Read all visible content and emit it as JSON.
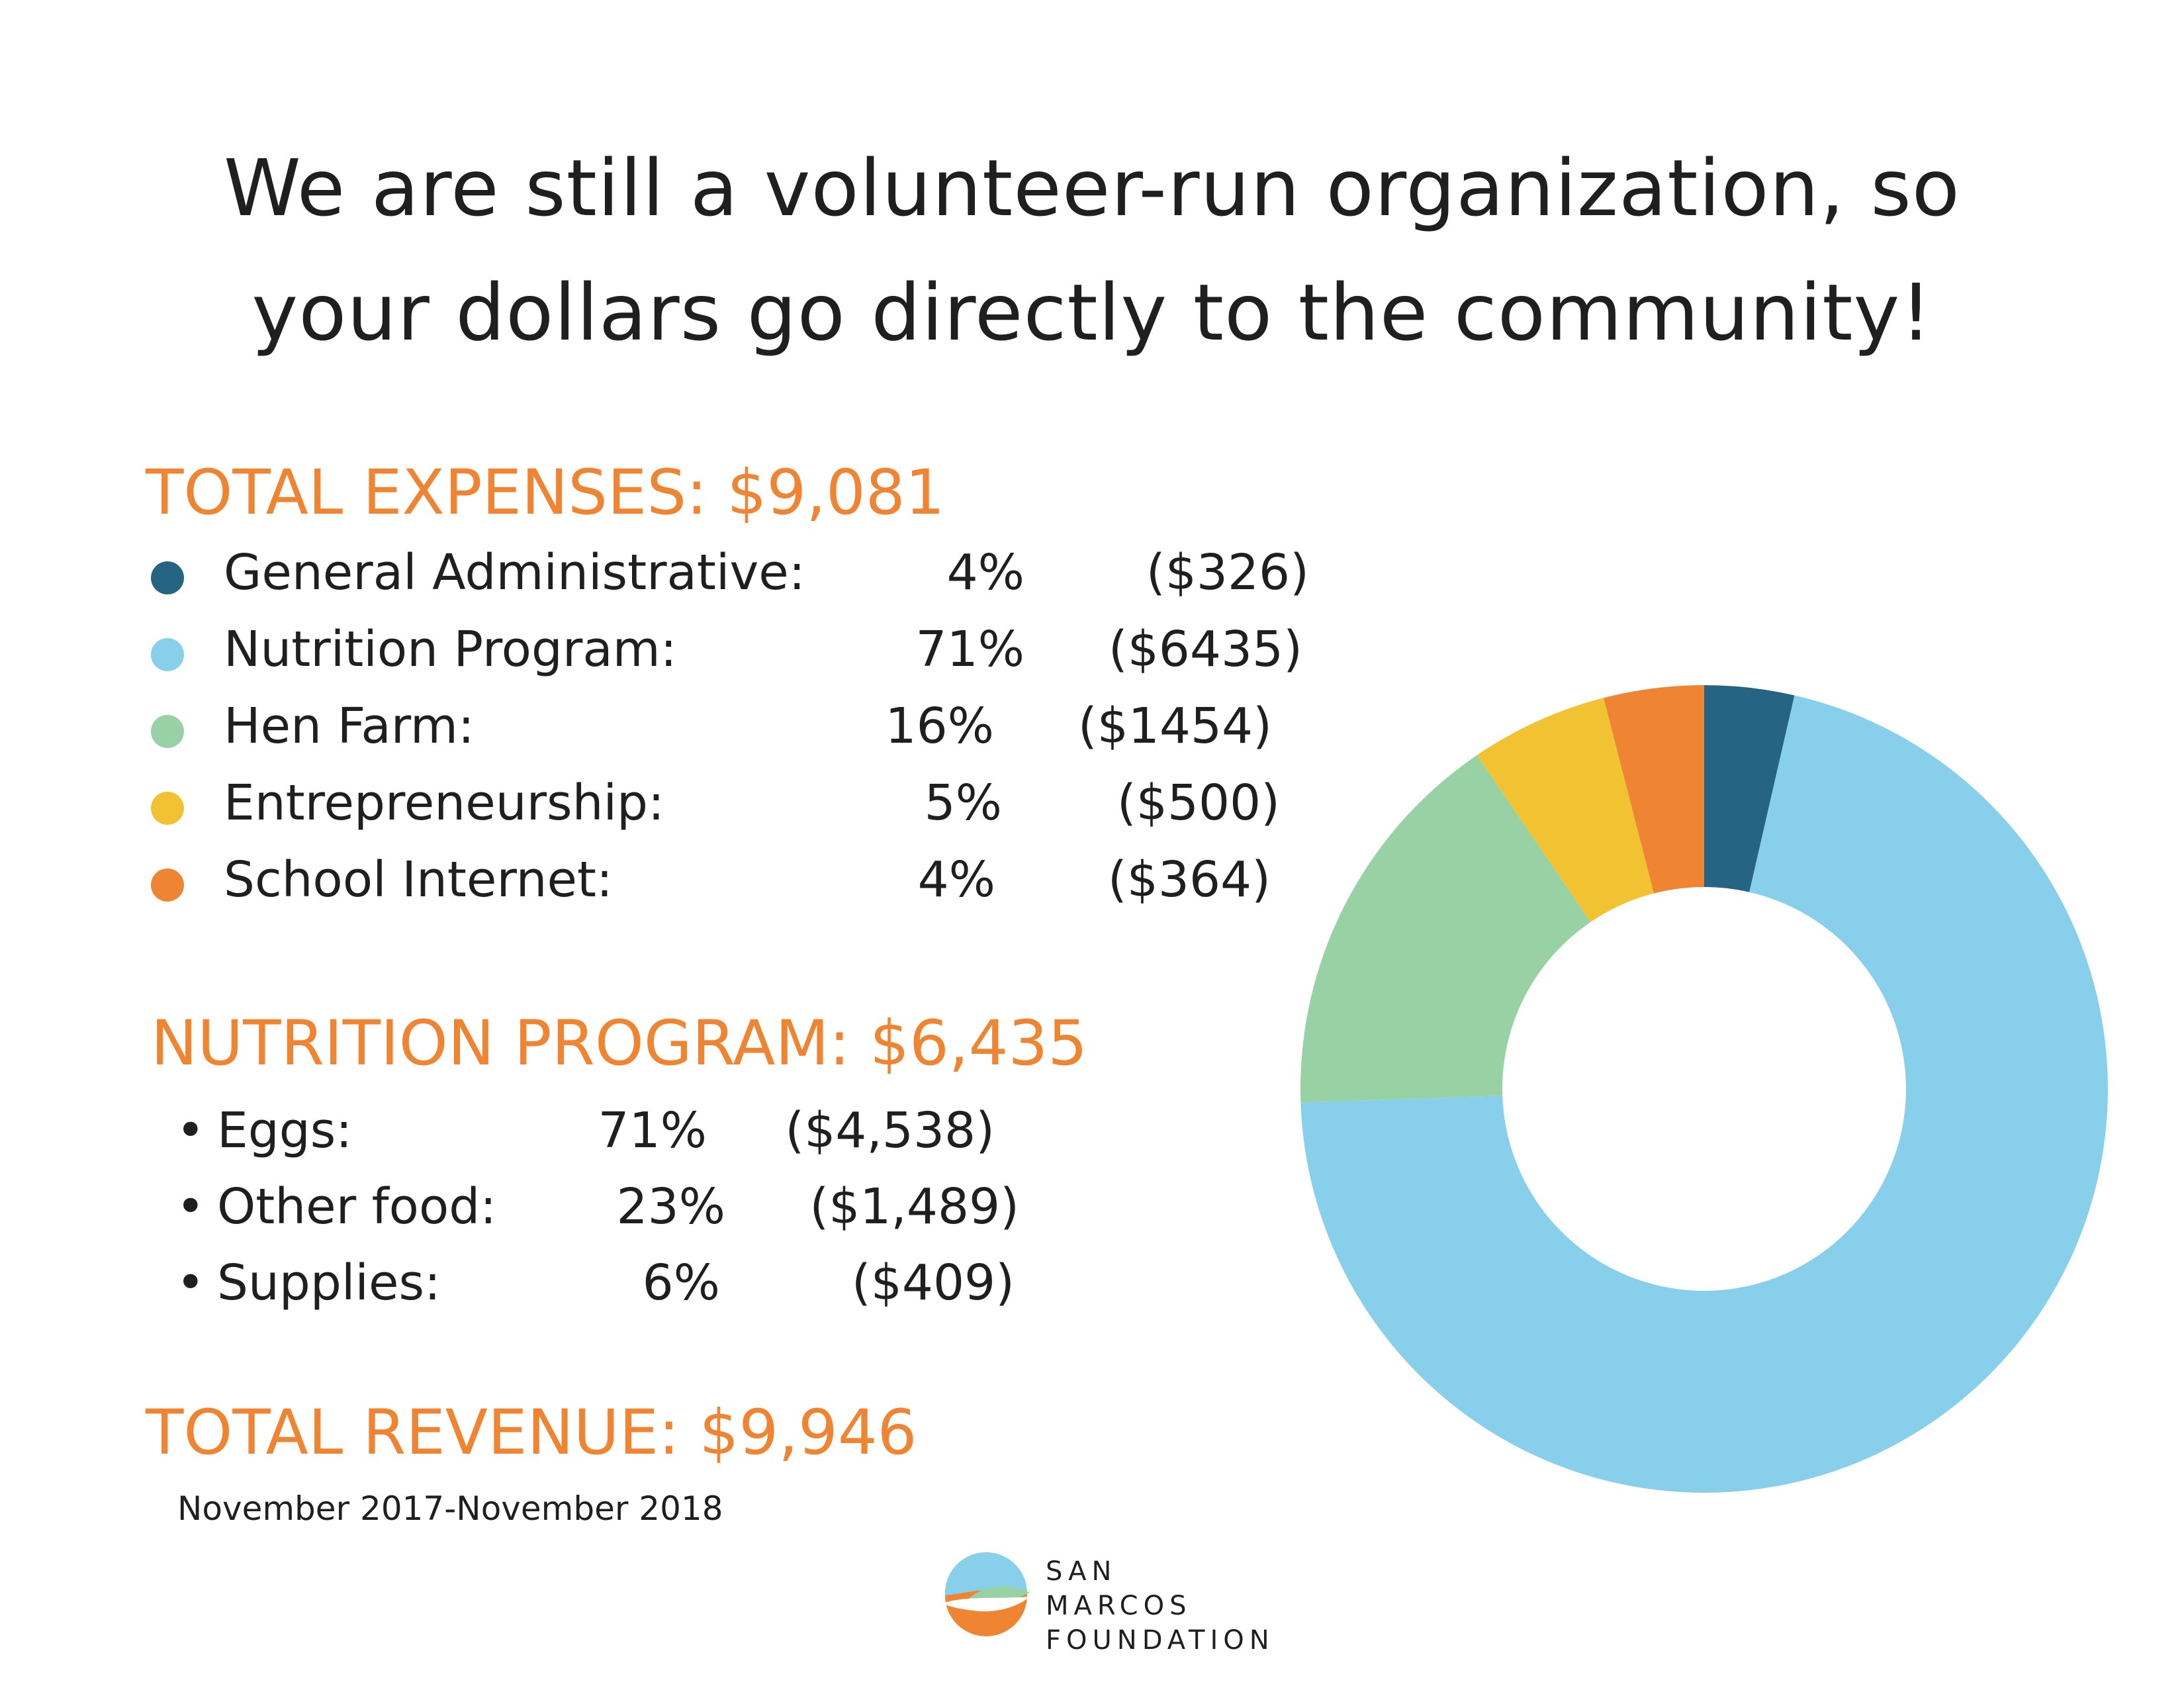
{
  "headline": {
    "line1": "We are still a volunteer-run organization, so",
    "line2": "your dollars go directly to the community!"
  },
  "expenses": {
    "title": "TOTAL EXPENSES: $9,081",
    "items": [
      {
        "label": "General Administrative:",
        "pct": "4%",
        "amount": "($326)",
        "color": "#256583"
      },
      {
        "label": "Nutrition Program:",
        "pct": "71%",
        "amount": "($6435)",
        "color": "#87cfeb"
      },
      {
        "label": "Hen Farm:",
        "pct": "16%",
        "amount": "($1454)",
        "color": "#98d1a4"
      },
      {
        "label": "Entrepreneurship:",
        "pct": "5%",
        "amount": "($500)",
        "color": "#f1c232"
      },
      {
        "label": "School Internet:",
        "pct": "4%",
        "amount": "($364)",
        "color": "#ef8533"
      }
    ]
  },
  "nutrition": {
    "title": "NUTRITION PROGRAM: $6,435",
    "items": [
      {
        "label": "Eggs:",
        "pct": "71%",
        "amount": "($4,538)"
      },
      {
        "label": "Other food:",
        "pct": "23%",
        "amount": "($1,489)"
      },
      {
        "label": "Supplies:",
        "pct": "6%",
        "amount": "($409)"
      }
    ]
  },
  "revenue": {
    "title": "TOTAL REVENUE: $9,946",
    "period": "November 2017-November 2018"
  },
  "logo": {
    "line1": "SAN",
    "line2": "MARCOS",
    "line3": "FOUNDATION"
  },
  "chart_data": {
    "type": "pie",
    "donut": true,
    "categories": [
      "General Administrative",
      "Nutrition Program",
      "Hen Farm",
      "Entrepreneurship",
      "School Internet"
    ],
    "values": [
      326,
      6435,
      1454,
      500,
      364
    ],
    "colors": [
      "#256583",
      "#87cfeb",
      "#98d1a4",
      "#f1c232",
      "#ef8533"
    ],
    "start": "12 o'clock",
    "direction": "clockwise"
  }
}
